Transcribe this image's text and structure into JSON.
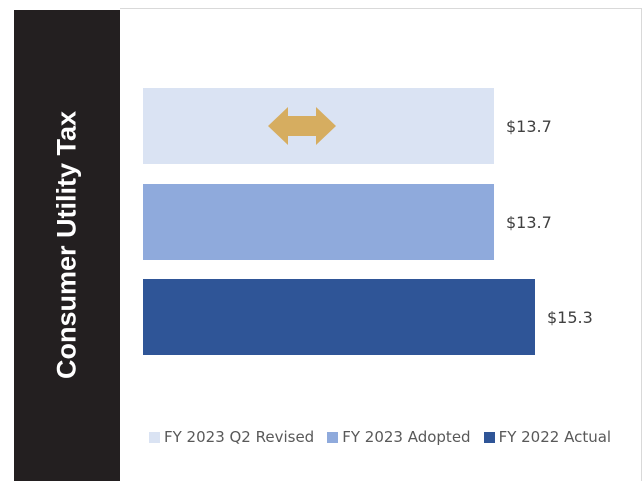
{
  "title": "Consumer Utility Tax",
  "colors": {
    "q2_revised": "#dae3f3",
    "adopted": "#8faadc",
    "actual": "#2f5597",
    "arrow": "#d6ad60",
    "panel": "#231f20"
  },
  "legend": [
    {
      "label": "FY 2023 Q2 Revised",
      "color": "#dae3f3"
    },
    {
      "label": "FY 2023 Adopted",
      "color": "#8faadc"
    },
    {
      "label": "FY 2022 Actual",
      "color": "#2f5597"
    }
  ],
  "chart_data": {
    "type": "bar",
    "orientation": "horizontal",
    "title": "Consumer Utility Tax",
    "categories": [
      "FY 2023 Q2 Revised",
      "FY 2023 Adopted",
      "FY 2022 Actual"
    ],
    "values": [
      13.7,
      13.7,
      15.3
    ],
    "value_labels": [
      "$13.7",
      "$13.7",
      "$15.3"
    ],
    "colors": [
      "#dae3f3",
      "#8faadc",
      "#2f5597"
    ],
    "xlim": [
      0,
      16
    ],
    "grid": false,
    "legend_position": "bottom",
    "annotation": "double-headed arrow on FY 2023 Q2 Revised bar (no change)"
  }
}
